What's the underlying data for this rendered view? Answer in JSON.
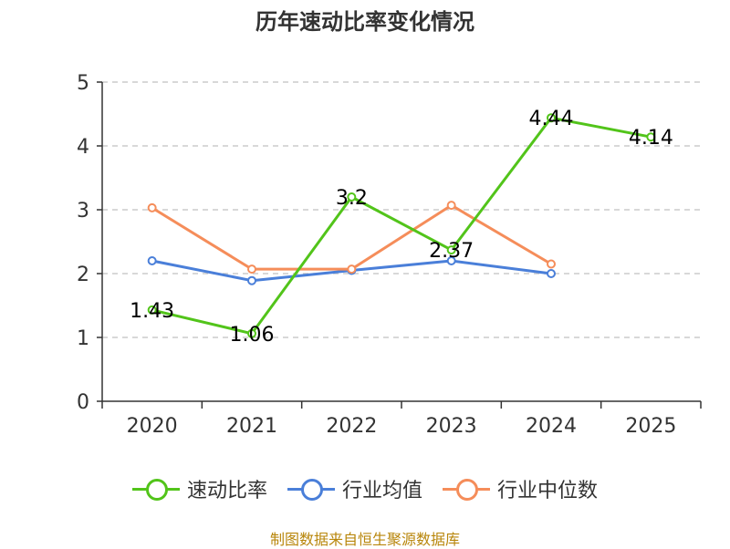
{
  "chart_data": {
    "type": "line",
    "title": "历年速动比率变化情况",
    "categories": [
      "2020",
      "2021",
      "2022",
      "2023",
      "2024",
      "2025"
    ],
    "ylim": [
      0,
      5
    ],
    "yticks": [
      "0",
      "1",
      "2",
      "3",
      "4",
      "5"
    ],
    "grid": true,
    "series": [
      {
        "name": "速动比率",
        "color": "#52c41a",
        "values": [
          1.43,
          1.06,
          3.2,
          2.37,
          4.44,
          4.14
        ],
        "labels": [
          "1.43",
          "1.06",
          "3.2",
          "2.37",
          "4.44",
          "4.14"
        ]
      },
      {
        "name": "行业均值",
        "color": "#4a7fd9",
        "values": [
          2.2,
          1.89,
          2.05,
          2.2,
          2.0,
          null
        ]
      },
      {
        "name": "行业中位数",
        "color": "#f58d5a",
        "values": [
          3.03,
          2.07,
          2.07,
          3.07,
          2.15,
          null
        ]
      }
    ]
  },
  "source": "制图数据来自恒生聚源数据库"
}
